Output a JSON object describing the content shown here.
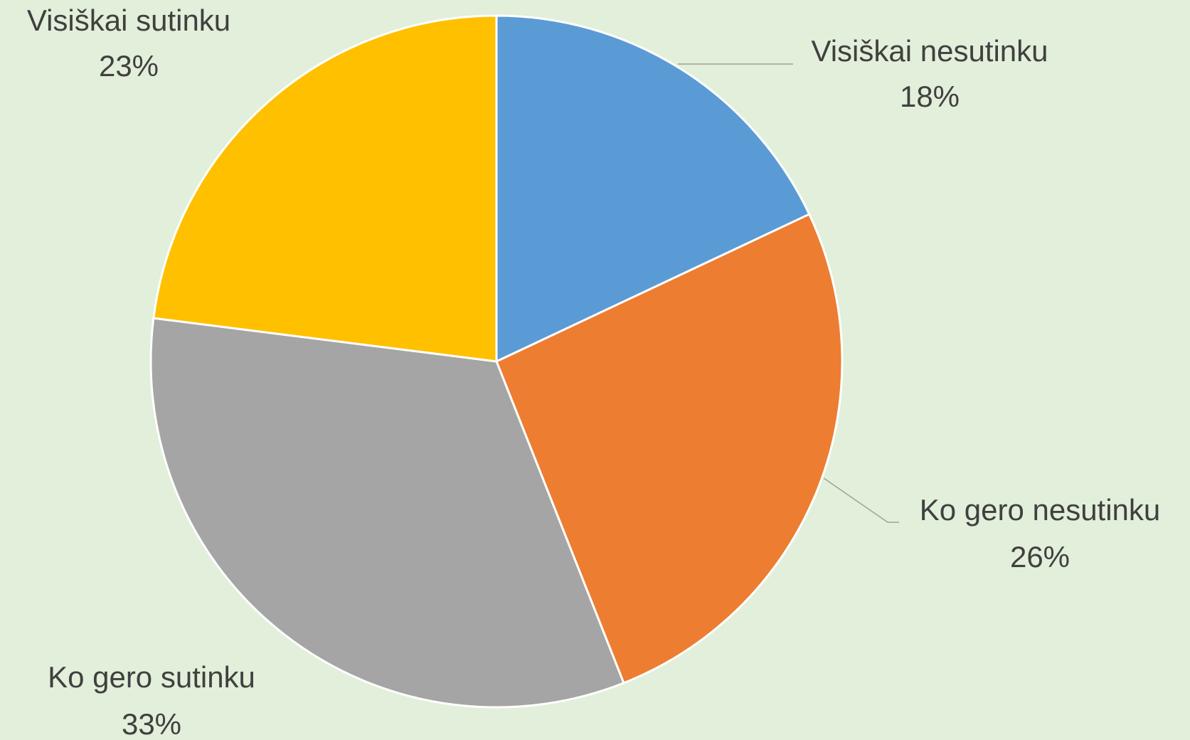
{
  "chart_data": {
    "type": "pie",
    "categories": [
      "Visiškai nesutinku",
      "Ko gero nesutinku",
      "Ko gero sutinku",
      "Visiškai sutinku"
    ],
    "values": [
      18,
      26,
      33,
      23
    ],
    "value_labels": [
      "18%",
      "26%",
      "33%",
      "23%"
    ],
    "colors": [
      "#5b9bd5",
      "#ed7d31",
      "#a5a5a5",
      "#ffc000"
    ]
  }
}
